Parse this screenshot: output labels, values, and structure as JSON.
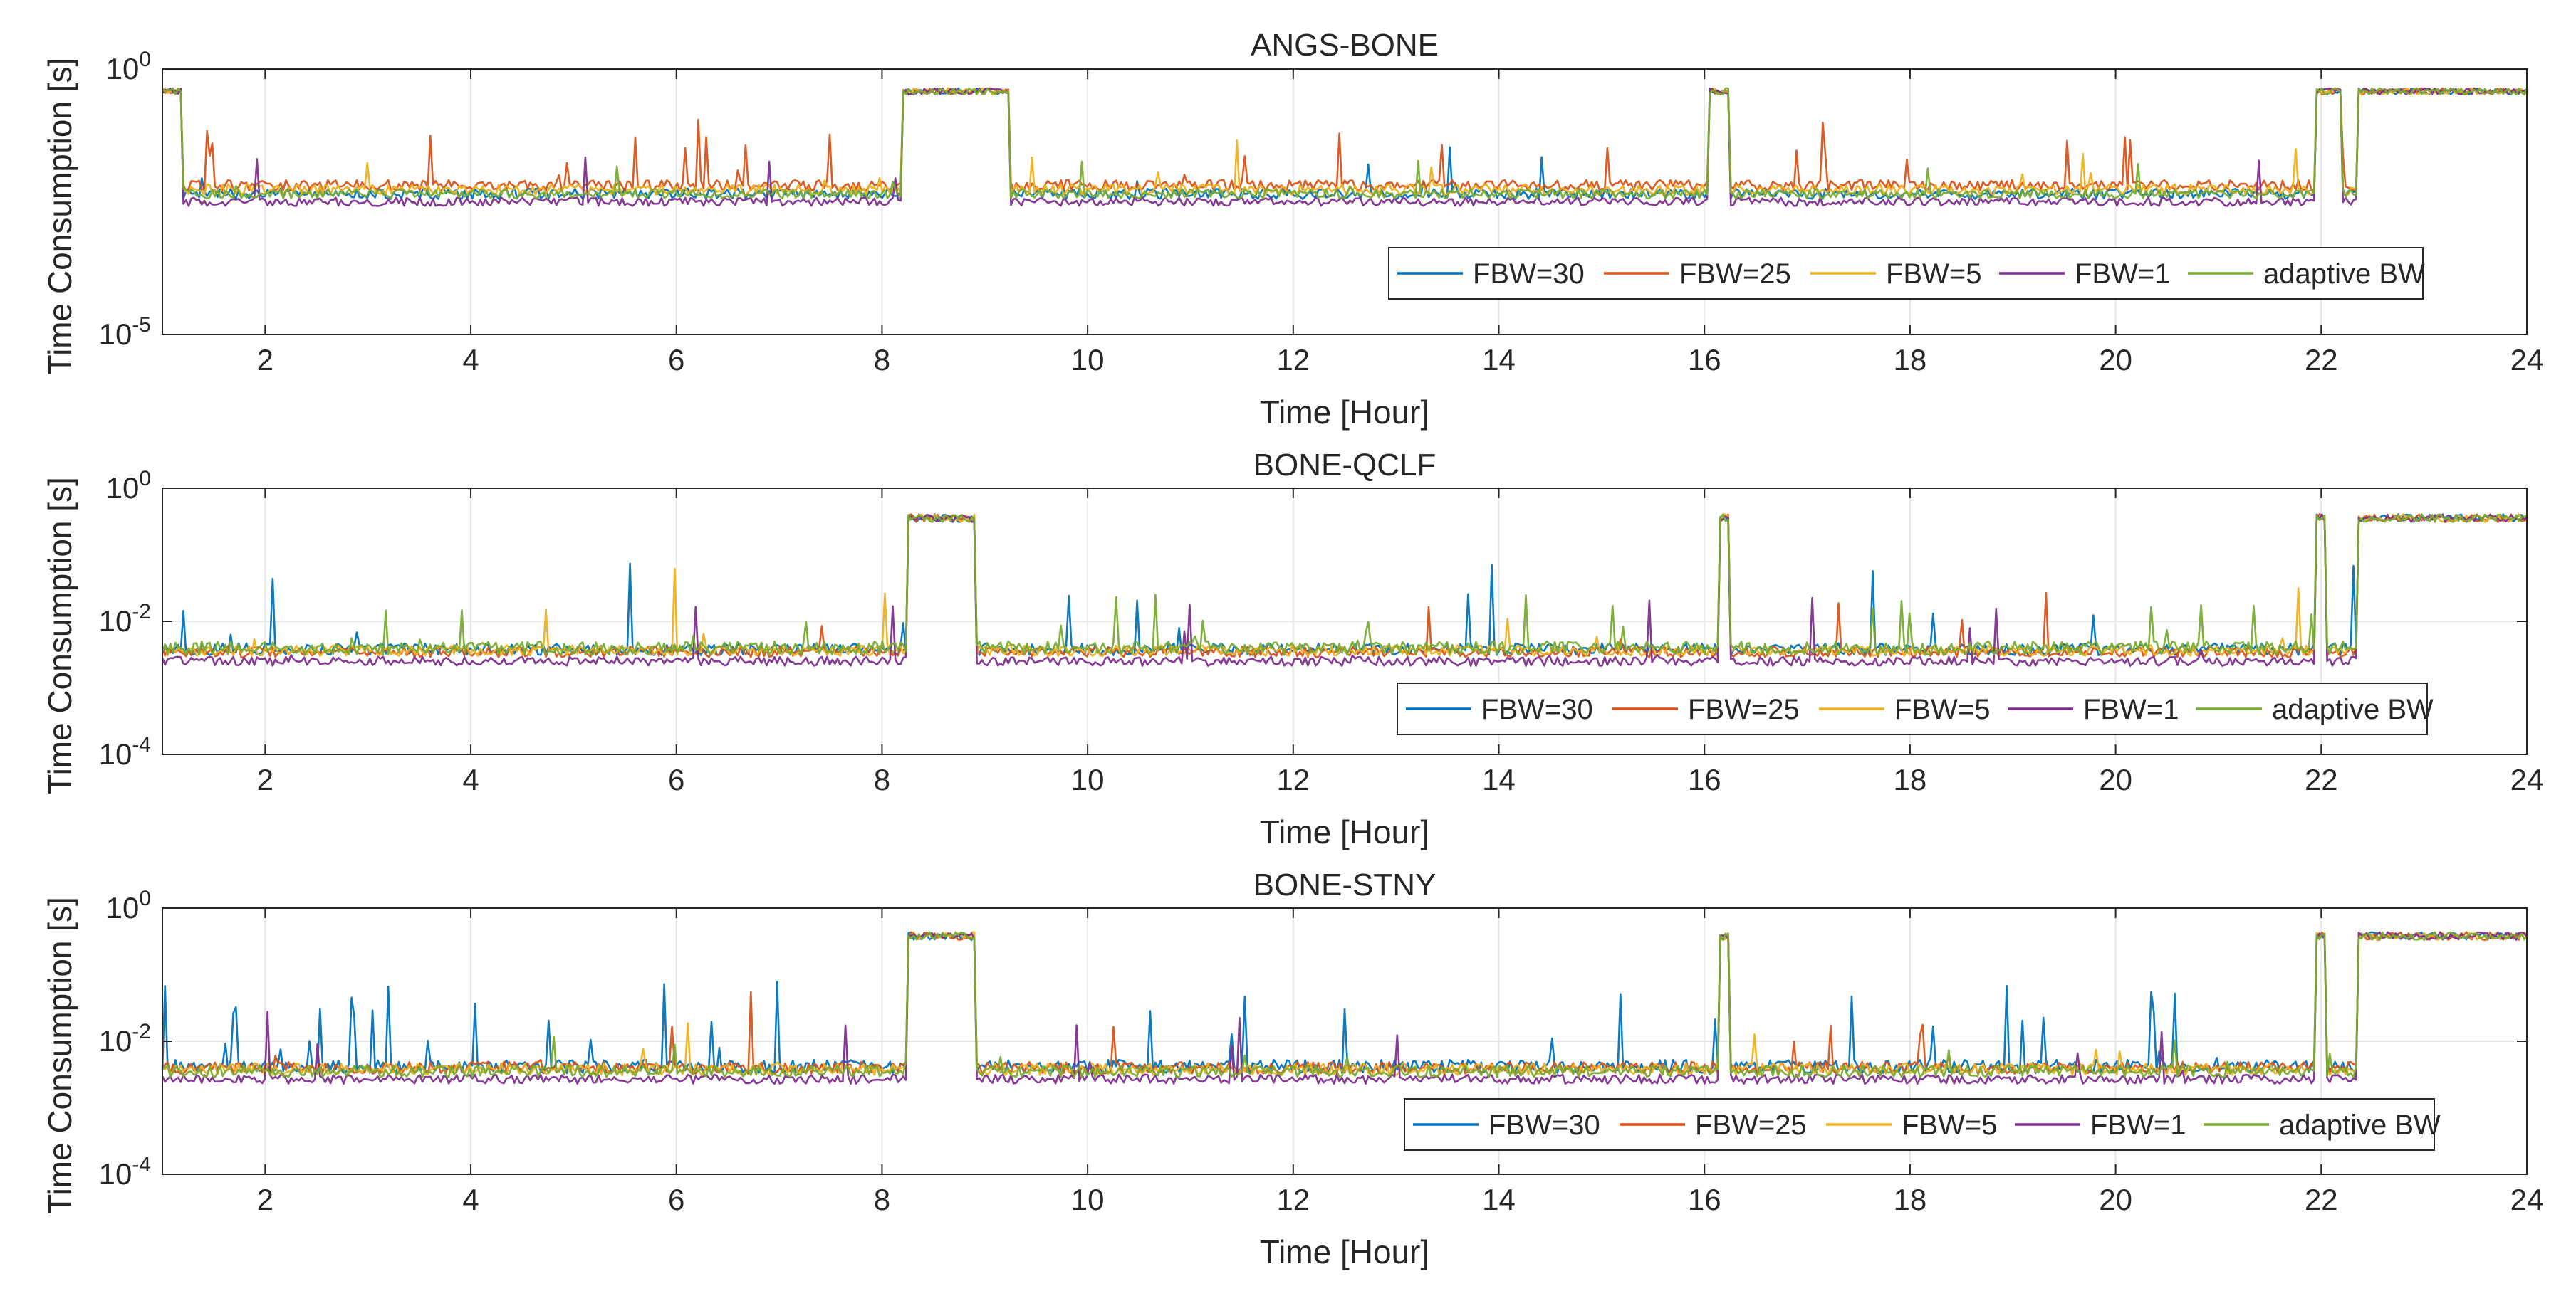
{
  "colors": {
    "FBW30": "#0072BD",
    "FBW25": "#D95319",
    "FBW5": "#EDB120",
    "FBW1": "#7E2F8E",
    "adaptive": "#77AC30",
    "grid": "#E6E6E6",
    "axis": "#262626"
  },
  "chart_data": [
    {
      "type": "line",
      "title": "ANGS-BONE",
      "xlabel": "Time [Hour]",
      "ylabel": "Time Consumption [s]",
      "yscale": "log",
      "xlim": [
        1,
        24
      ],
      "ylim_exp": [
        -5,
        0
      ],
      "xticks": [
        "2",
        "4",
        "6",
        "8",
        "10",
        "12",
        "14",
        "16",
        "18",
        "20",
        "22",
        "24"
      ],
      "ytick_labels": [
        {
          "base": "10",
          "exp": "0",
          "value_exp": 0
        },
        {
          "base": "10",
          "exp": "-5",
          "value_exp": -5
        }
      ],
      "grid": true,
      "legend_position": "bottom-right, horizontal",
      "series": [
        {
          "name": "FBW=30",
          "key": "FBW30",
          "base_exp": -2.35,
          "jitter": 0.1,
          "spike_rate": 0.01,
          "spike_max": 1.0,
          "offset": 0.0
        },
        {
          "name": "FBW=25",
          "key": "FBW25",
          "base_exp": -2.25,
          "jitter": 0.1,
          "spike_rate": 0.04,
          "spike_max": 1.2,
          "offset": 0.06
        },
        {
          "name": "FBW=5",
          "key": "FBW5",
          "base_exp": -2.3,
          "jitter": 0.1,
          "spike_rate": 0.02,
          "spike_max": 1.0,
          "offset": 0.03
        },
        {
          "name": "FBW=1",
          "key": "FBW1",
          "base_exp": -2.45,
          "jitter": 0.08,
          "spike_rate": 0.01,
          "spike_max": 1.0,
          "offset": -0.05
        },
        {
          "name": "adaptive BW",
          "key": "adaptive",
          "base_exp": -2.35,
          "jitter": 0.09,
          "spike_rate": 0.012,
          "spike_max": 0.8,
          "offset": 0.0
        }
      ],
      "high_level_exp": -0.42,
      "high_periods": [
        [
          1.0,
          1.2
        ],
        [
          8.2,
          9.25
        ],
        [
          16.05,
          16.25
        ],
        [
          21.95,
          22.2
        ],
        [
          22.35,
          24.0
        ]
      ]
    },
    {
      "type": "line",
      "title": "BONE-QCLF",
      "xlabel": "Time [Hour]",
      "ylabel": "Time Consumption [s]",
      "yscale": "log",
      "xlim": [
        1,
        24
      ],
      "ylim_exp": [
        -4,
        0
      ],
      "xticks": [
        "2",
        "4",
        "6",
        "8",
        "10",
        "12",
        "14",
        "16",
        "18",
        "20",
        "22",
        "24"
      ],
      "ytick_labels": [
        {
          "base": "10",
          "exp": "0",
          "value_exp": 0
        },
        {
          "base": "10",
          "exp": "-2",
          "value_exp": -2
        },
        {
          "base": "10",
          "exp": "-4",
          "value_exp": -4
        }
      ],
      "grid": true,
      "legend_position": "bottom-right, horizontal",
      "series": [
        {
          "name": "FBW=30",
          "key": "FBW30",
          "base_exp": -2.42,
          "jitter": 0.09,
          "spike_rate": 0.025,
          "spike_max": 1.3,
          "offset": 0.0
        },
        {
          "name": "FBW=25",
          "key": "FBW25",
          "base_exp": -2.46,
          "jitter": 0.08,
          "spike_rate": 0.012,
          "spike_max": 1.0,
          "offset": 0.0
        },
        {
          "name": "FBW=5",
          "key": "FBW5",
          "base_exp": -2.44,
          "jitter": 0.08,
          "spike_rate": 0.018,
          "spike_max": 1.2,
          "offset": 0.0
        },
        {
          "name": "FBW=1",
          "key": "FBW1",
          "base_exp": -2.55,
          "jitter": 0.07,
          "spike_rate": 0.01,
          "spike_max": 1.0,
          "offset": -0.05
        },
        {
          "name": "adaptive BW",
          "key": "adaptive",
          "base_exp": -2.4,
          "jitter": 0.1,
          "spike_rate": 0.03,
          "spike_max": 0.8,
          "offset": 0.0
        }
      ],
      "high_level_exp": -0.45,
      "high_periods": [
        [
          8.25,
          8.9
        ],
        [
          16.15,
          16.25
        ],
        [
          21.95,
          22.05
        ],
        [
          22.35,
          24.0
        ]
      ]
    },
    {
      "type": "line",
      "title": "BONE-STNY",
      "xlabel": "Time [Hour]",
      "ylabel": "Time Consumption [s]",
      "yscale": "log",
      "xlim": [
        1,
        24
      ],
      "ylim_exp": [
        -4,
        0
      ],
      "xticks": [
        "2",
        "4",
        "6",
        "8",
        "10",
        "12",
        "14",
        "16",
        "18",
        "20",
        "22",
        "24"
      ],
      "ytick_labels": [
        {
          "base": "10",
          "exp": "0",
          "value_exp": 0
        },
        {
          "base": "10",
          "exp": "-2",
          "value_exp": -2
        },
        {
          "base": "10",
          "exp": "-4",
          "value_exp": -4
        }
      ],
      "grid": true,
      "legend_position": "bottom-right, horizontal",
      "series": [
        {
          "name": "FBW=30",
          "key": "FBW30",
          "base_exp": -2.38,
          "jitter": 0.1,
          "spike_rate": 0.06,
          "spike_max": 1.3,
          "offset": 0.0
        },
        {
          "name": "FBW=25",
          "key": "FBW25",
          "base_exp": -2.4,
          "jitter": 0.09,
          "spike_rate": 0.012,
          "spike_max": 1.1,
          "offset": 0.0
        },
        {
          "name": "FBW=5",
          "key": "FBW5",
          "base_exp": -2.42,
          "jitter": 0.09,
          "spike_rate": 0.012,
          "spike_max": 1.1,
          "offset": 0.0
        },
        {
          "name": "FBW=1",
          "key": "FBW1",
          "base_exp": -2.52,
          "jitter": 0.07,
          "spike_rate": 0.01,
          "spike_max": 1.0,
          "offset": -0.05
        },
        {
          "name": "adaptive BW",
          "key": "adaptive",
          "base_exp": -2.45,
          "jitter": 0.09,
          "spike_rate": 0.012,
          "spike_max": 0.6,
          "offset": 0.0
        }
      ],
      "high_level_exp": -0.42,
      "high_periods": [
        [
          8.25,
          8.9
        ],
        [
          16.15,
          16.25
        ],
        [
          21.95,
          22.05
        ],
        [
          22.35,
          24.0
        ]
      ]
    }
  ]
}
